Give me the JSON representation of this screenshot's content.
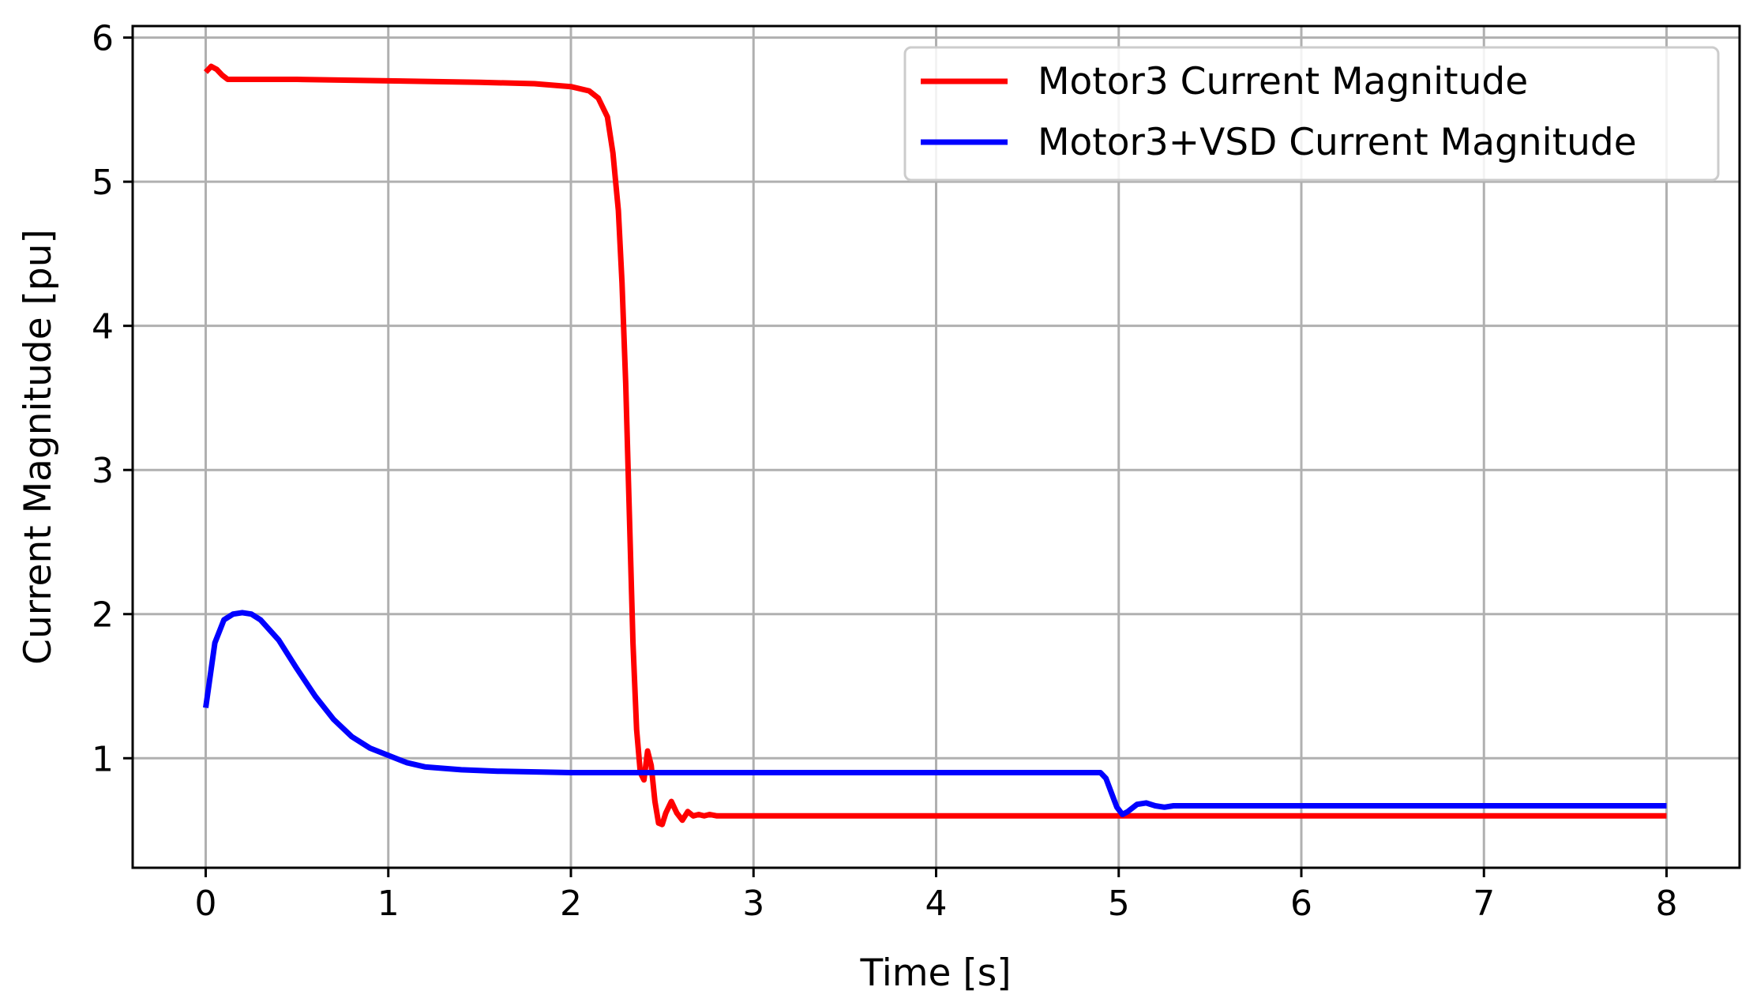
{
  "chart_data": {
    "type": "line",
    "title": "",
    "xlabel": "Time [s]",
    "ylabel": "Current Magnitude [pu]",
    "xlim": [
      -0.4,
      8.4
    ],
    "ylim": [
      0.24,
      6.08
    ],
    "xticks": [
      0,
      1,
      2,
      3,
      4,
      5,
      6,
      7,
      8
    ],
    "yticks": [
      1,
      2,
      3,
      4,
      5,
      6
    ],
    "grid": true,
    "legend_position": "upper right",
    "series": [
      {
        "name": "Motor3 Current Magnitude",
        "color": "#ff0000",
        "x": [
          0.0,
          0.03,
          0.06,
          0.09,
          0.12,
          0.16,
          0.2,
          0.5,
          1.0,
          1.5,
          1.8,
          2.0,
          2.1,
          2.15,
          2.2,
          2.23,
          2.26,
          2.28,
          2.3,
          2.32,
          2.34,
          2.36,
          2.38,
          2.4,
          2.42,
          2.44,
          2.46,
          2.48,
          2.5,
          2.52,
          2.55,
          2.58,
          2.61,
          2.64,
          2.67,
          2.7,
          2.73,
          2.76,
          2.8,
          2.85,
          3.0,
          4.0,
          5.0,
          6.0,
          7.0,
          8.0
        ],
        "y": [
          5.76,
          5.8,
          5.78,
          5.74,
          5.71,
          5.71,
          5.71,
          5.71,
          5.7,
          5.69,
          5.68,
          5.66,
          5.63,
          5.58,
          5.45,
          5.2,
          4.8,
          4.3,
          3.6,
          2.7,
          1.8,
          1.2,
          0.9,
          0.85,
          1.05,
          0.95,
          0.7,
          0.55,
          0.54,
          0.62,
          0.7,
          0.62,
          0.57,
          0.63,
          0.6,
          0.61,
          0.6,
          0.61,
          0.6,
          0.6,
          0.6,
          0.6,
          0.6,
          0.6,
          0.6,
          0.6
        ]
      },
      {
        "name": "Motor3+VSD Current Magnitude",
        "color": "#0000ff",
        "x": [
          0.0,
          0.05,
          0.1,
          0.15,
          0.2,
          0.25,
          0.3,
          0.4,
          0.5,
          0.6,
          0.7,
          0.8,
          0.9,
          1.0,
          1.1,
          1.2,
          1.4,
          1.6,
          2.0,
          2.5,
          3.0,
          4.0,
          4.5,
          4.9,
          4.93,
          4.96,
          4.99,
          5.02,
          5.05,
          5.1,
          5.15,
          5.2,
          5.25,
          5.3,
          5.4,
          6.0,
          7.0,
          8.0
        ],
        "y": [
          1.35,
          1.8,
          1.96,
          2.0,
          2.01,
          2.0,
          1.96,
          1.82,
          1.62,
          1.43,
          1.27,
          1.15,
          1.07,
          1.02,
          0.97,
          0.94,
          0.92,
          0.91,
          0.9,
          0.9,
          0.9,
          0.9,
          0.9,
          0.9,
          0.86,
          0.76,
          0.66,
          0.61,
          0.63,
          0.68,
          0.69,
          0.67,
          0.66,
          0.67,
          0.67,
          0.67,
          0.67,
          0.67
        ]
      }
    ]
  }
}
